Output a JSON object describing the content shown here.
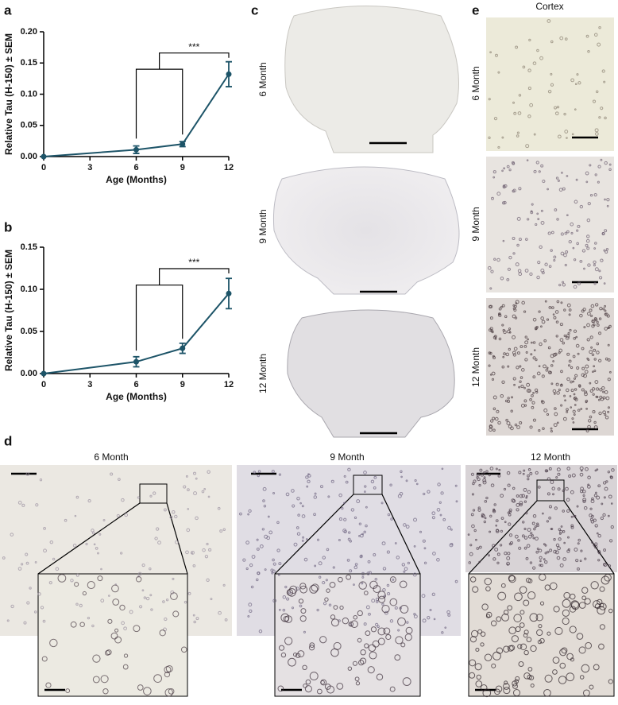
{
  "chart_data": [
    {
      "type": "line",
      "panel": "a",
      "x": [
        0,
        6,
        9,
        12
      ],
      "series": [
        {
          "color": "#1d5468",
          "values": [
            0,
            0.011,
            0.02,
            0.132
          ],
          "errors": [
            0,
            0.006,
            0.004,
            0.02
          ]
        }
      ],
      "xlim": [
        0,
        12
      ],
      "xticks": [
        0,
        3,
        6,
        9,
        12
      ],
      "ylim": [
        0,
        0.2
      ],
      "yticks": [
        {
          "value": 0,
          "label": "0.00"
        },
        {
          "value": 0.05,
          "label": "0.05"
        },
        {
          "value": 0.1,
          "label": "0.10"
        },
        {
          "value": 0.15,
          "label": "0.15"
        },
        {
          "value": 0.2,
          "label": "0.20"
        }
      ],
      "x_label": "Age (Months)",
      "y_label": "Relative Tau (H-150) ± SEM",
      "annotation": "***"
    },
    {
      "type": "line",
      "panel": "b",
      "x": [
        0,
        6,
        9,
        12
      ],
      "series": [
        {
          "color": "#1d5468",
          "values": [
            0,
            0.014,
            0.03,
            0.095
          ],
          "errors": [
            0,
            0.006,
            0.006,
            0.018
          ]
        }
      ],
      "xlim": [
        0,
        12
      ],
      "xticks": [
        0,
        3,
        6,
        9,
        12
      ],
      "ylim": [
        0,
        0.15
      ],
      "yticks": [
        {
          "value": 0,
          "label": "0.00"
        },
        {
          "value": 0.05,
          "label": "0.05"
        },
        {
          "value": 0.1,
          "label": "0.10"
        },
        {
          "value": 0.15,
          "label": "0.15"
        }
      ],
      "x_label": "Age (Months)",
      "y_label": "Relative Tau (H-150) ± SEM",
      "annotation": "***"
    }
  ],
  "panel_c": {
    "letter": "c",
    "labels": [
      "6 Month",
      "9 Month",
      "12 Month"
    ]
  },
  "panel_d": {
    "letter": "d",
    "labels": [
      "6 Month",
      "9 Month",
      "12 Month"
    ]
  },
  "panel_e": {
    "letter": "e",
    "title": "Cortex",
    "labels": [
      "6 Month",
      "9 Month",
      "12 Month"
    ]
  }
}
